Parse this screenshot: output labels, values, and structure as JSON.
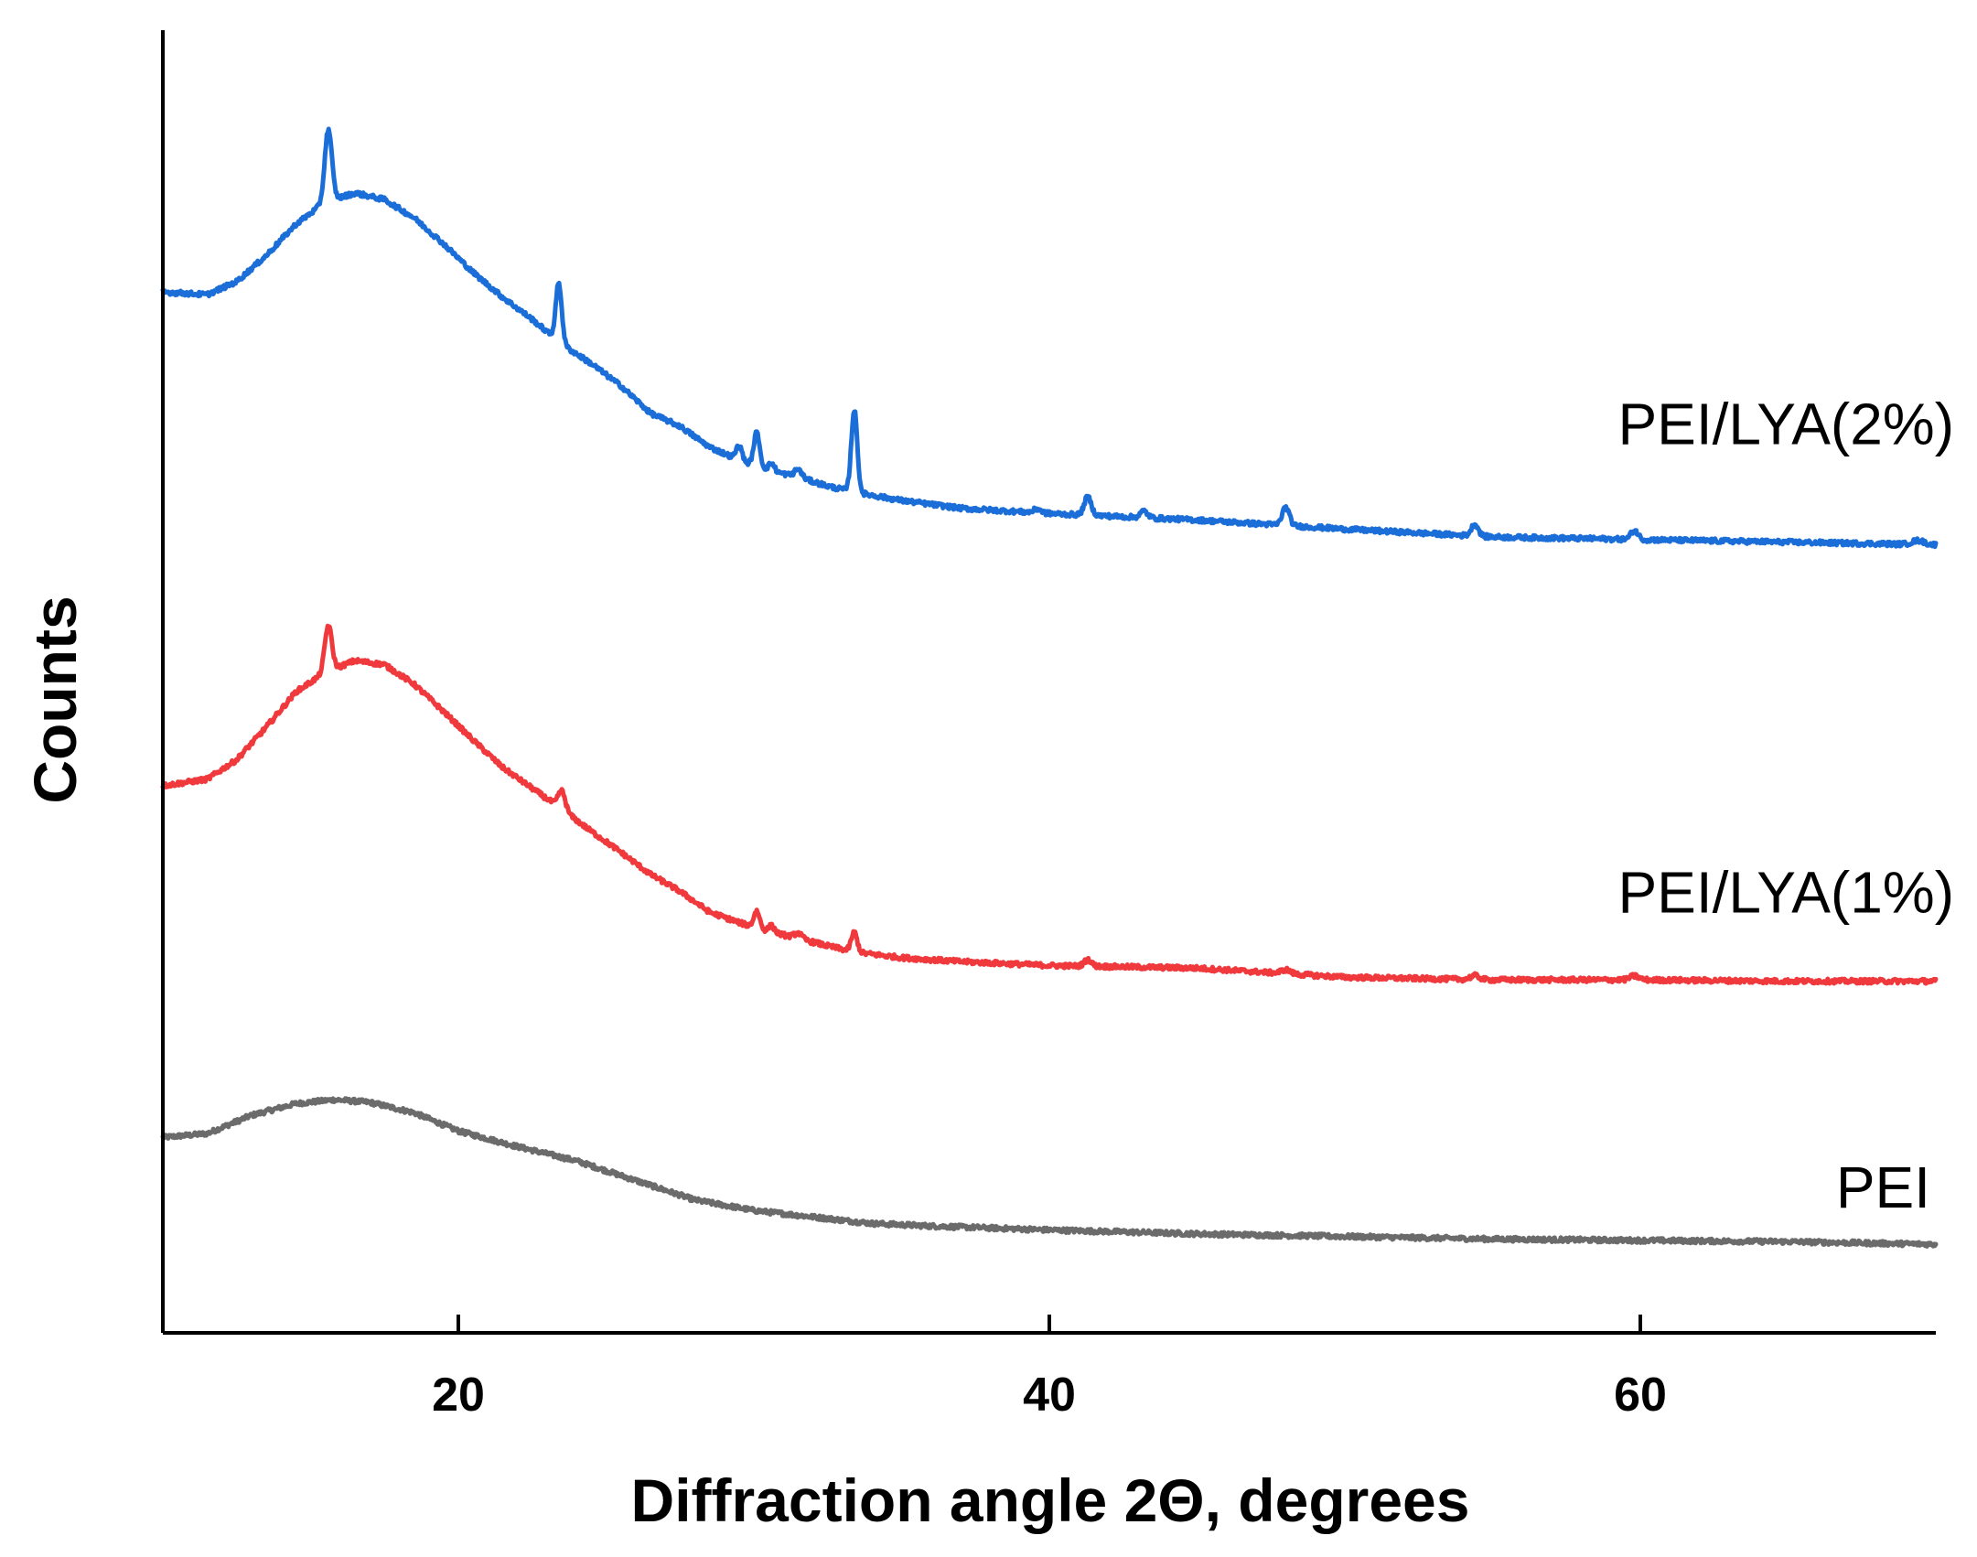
{
  "chart_data": {
    "type": "line",
    "title": "",
    "xlabel": "Diffraction angle 2Θ, degrees",
    "ylabel": "Counts",
    "xlim": [
      10,
      70
    ],
    "ylim": [
      0,
      100
    ],
    "x_ticks": [
      "20",
      "40",
      "60"
    ],
    "x_tick_values": [
      20,
      40,
      60
    ],
    "y_ticks_shown": false,
    "grid": false,
    "legend": "inline labels at right end of each curve",
    "series": [
      {
        "name": "PEI",
        "color": "#6b6b6b",
        "points": [
          [
            10,
            15.0
          ],
          [
            11.5,
            15.3
          ],
          [
            13,
            16.7
          ],
          [
            14.5,
            17.6
          ],
          [
            15.8,
            17.9
          ],
          [
            17,
            17.7
          ],
          [
            18.5,
            16.9
          ],
          [
            20,
            15.5
          ],
          [
            22,
            14.3
          ],
          [
            24,
            13.2
          ],
          [
            26,
            11.7
          ],
          [
            28,
            10.2
          ],
          [
            30,
            9.4
          ],
          [
            32,
            8.9
          ],
          [
            34,
            8.4
          ],
          [
            36,
            8.2
          ],
          [
            40,
            7.9
          ],
          [
            45,
            7.6
          ],
          [
            50,
            7.4
          ],
          [
            55,
            7.2
          ],
          [
            60,
            7.1
          ],
          [
            65,
            7.0
          ],
          [
            70,
            6.8
          ]
        ],
        "peaks": []
      },
      {
        "name": "PEI/LYA(1%)",
        "color": "#f0393c",
        "points": [
          [
            10,
            42.0
          ],
          [
            11.5,
            42.5
          ],
          [
            12.5,
            44.0
          ],
          [
            13.5,
            46.5
          ],
          [
            14.5,
            49.2
          ],
          [
            15.5,
            50.7
          ],
          [
            16.5,
            51.6
          ],
          [
            17.5,
            51.3
          ],
          [
            18.5,
            49.8
          ],
          [
            19.5,
            47.7
          ],
          [
            20.5,
            45.5
          ],
          [
            21.5,
            43.4
          ],
          [
            22.5,
            41.8
          ],
          [
            23.5,
            40.2
          ],
          [
            24.5,
            38.5
          ],
          [
            25.5,
            36.9
          ],
          [
            26.5,
            35.2
          ],
          [
            27.5,
            33.9
          ],
          [
            28.5,
            32.3
          ],
          [
            29.5,
            31.5
          ],
          [
            30.5,
            30.8
          ],
          [
            31.5,
            30.3
          ],
          [
            32.5,
            29.7
          ],
          [
            33.5,
            29.2
          ],
          [
            35,
            28.8
          ],
          [
            37,
            28.5
          ],
          [
            40,
            28.2
          ],
          [
            45,
            28.0
          ],
          [
            50,
            27.3
          ],
          [
            55,
            27.1
          ],
          [
            60,
            27.1
          ],
          [
            65,
            27.0
          ],
          [
            70,
            27.0
          ]
        ],
        "peaks": [
          [
            15.6,
            3.5,
            0.12
          ],
          [
            23.5,
            1.4,
            0.12
          ],
          [
            30.1,
            1.3,
            0.1
          ],
          [
            30.6,
            0.5,
            0.1
          ],
          [
            31.5,
            0.4,
            0.12
          ],
          [
            33.4,
            1.5,
            0.1
          ],
          [
            41.3,
            0.5,
            0.12
          ],
          [
            48.0,
            0.3,
            0.15
          ],
          [
            54.4,
            0.3,
            0.15
          ],
          [
            59.8,
            0.3,
            0.15
          ]
        ]
      },
      {
        "name": "PEI/LYA(2%)",
        "color": "#1b6ed8",
        "points": [
          [
            10,
            79.9
          ],
          [
            11.5,
            79.7
          ],
          [
            12.5,
            80.7
          ],
          [
            13.5,
            82.7
          ],
          [
            14.5,
            85.1
          ],
          [
            15.5,
            86.8
          ],
          [
            16.5,
            87.5
          ],
          [
            17.5,
            87.0
          ],
          [
            18.5,
            85.6
          ],
          [
            19.5,
            83.6
          ],
          [
            20.5,
            81.4
          ],
          [
            21.5,
            79.5
          ],
          [
            22.5,
            77.8
          ],
          [
            23.5,
            75.9
          ],
          [
            24.5,
            74.4
          ],
          [
            25.5,
            72.7
          ],
          [
            26.5,
            70.6
          ],
          [
            27.5,
            69.6
          ],
          [
            28.5,
            68.0
          ],
          [
            29.5,
            67.0
          ],
          [
            30.5,
            66.2
          ],
          [
            31.5,
            65.7
          ],
          [
            32.5,
            65.0
          ],
          [
            33.5,
            64.5
          ],
          [
            35,
            63.9
          ],
          [
            37,
            63.3
          ],
          [
            40,
            62.9
          ],
          [
            45,
            62.4
          ],
          [
            50,
            61.7
          ],
          [
            55,
            61.1
          ],
          [
            60,
            60.9
          ],
          [
            65,
            60.7
          ],
          [
            70,
            60.5
          ]
        ],
        "peaks": [
          [
            15.6,
            5.5,
            0.12
          ],
          [
            23.4,
            4.5,
            0.1
          ],
          [
            29.5,
            1.1,
            0.1
          ],
          [
            30.1,
            2.6,
            0.1
          ],
          [
            30.6,
            0.6,
            0.1
          ],
          [
            31.5,
            0.6,
            0.12
          ],
          [
            33.4,
            6.3,
            0.1
          ],
          [
            39.6,
            0.3,
            0.12
          ],
          [
            41.3,
            1.4,
            0.12
          ],
          [
            43.2,
            0.5,
            0.12
          ],
          [
            48.0,
            1.4,
            0.12
          ],
          [
            54.4,
            0.9,
            0.12
          ],
          [
            59.8,
            0.7,
            0.12
          ],
          [
            69.4,
            0.3,
            0.2
          ]
        ]
      }
    ]
  }
}
